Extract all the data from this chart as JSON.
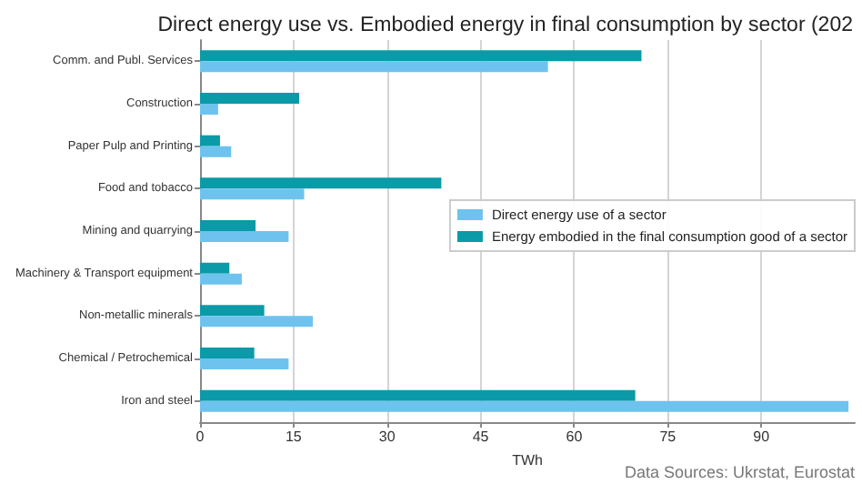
{
  "chart_data": {
    "type": "bar",
    "orientation": "horizontal",
    "title": "Direct energy use vs. Embodied energy in final consumption by sector (202",
    "xlabel": "TWh",
    "categories": [
      "Comm. and Publ. Services",
      "Construction",
      "Paper Pulp and Printing",
      "Food and tobacco",
      "Mining and quarrying",
      "Machinery & Transport equipment",
      "Non-metallic minerals",
      "Chemical / Petrochemical",
      "Iron and steel"
    ],
    "series": [
      {
        "name": "Direct energy use of a sector",
        "color": "#6ec3ee",
        "values": [
          55.8,
          2.9,
          5.0,
          16.7,
          14.2,
          6.7,
          18.1,
          14.2,
          104
        ]
      },
      {
        "name": "Energy embodied in the final consumption good of a sector",
        "color": "#0a9aa8",
        "values": [
          70.8,
          15.9,
          3.2,
          38.7,
          8.9,
          4.7,
          10.3,
          8.7,
          69.8
        ]
      }
    ],
    "xlim": [
      0,
      105
    ],
    "xticks": [
      0,
      15,
      30,
      45,
      60,
      75,
      90
    ],
    "grid": "x",
    "legend": "right",
    "annotations": [
      "Data Sources: Ukrstat, Eurostat"
    ]
  }
}
